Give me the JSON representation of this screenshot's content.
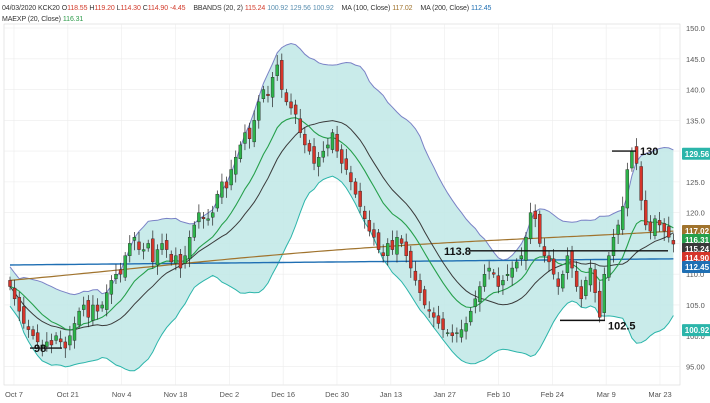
{
  "header": {
    "line1": {
      "date": "04/03/2020",
      "symbol": "KCK20",
      "open_label": "O",
      "open": "118.55",
      "high_label": "H",
      "high": "119.20",
      "low_label": "L",
      "low": "114.30",
      "close_label": "C",
      "close": "114.90",
      "change": "-4.45",
      "bbands_label": "BBANDS (20, 2)",
      "bb_mid": "115.24",
      "bb_low": "100.92",
      "bb_up": "129.56",
      "bb_low2": "100.92",
      "ma100_label": "MA (100, Close)",
      "ma100": "117.02",
      "ma200_label": "MA (200, Close)",
      "ma200": "112.45"
    },
    "line2": {
      "maexp_label": "MAEXP (20, Close)",
      "maexp": "116.31"
    }
  },
  "chart_data": {
    "type": "candlestick",
    "ylim": [
      92,
      150
    ],
    "yticks": [
      "95.00",
      "100.0",
      "105.0",
      "110.0",
      "115.0",
      "120.0",
      "125.0",
      "130.0",
      "135.0",
      "140.0",
      "145.0",
      "150.0"
    ],
    "xticks": [
      "Oct 7",
      "Oct 21",
      "Nov 4",
      "Nov 18",
      "Dec 2",
      "Dec 16",
      "Dec 30",
      "Jan 13",
      "Jan 27",
      "Feb 10",
      "Feb 24",
      "Mar 9",
      "Mar 23"
    ],
    "price_tags": [
      {
        "value": 129.56,
        "label": "129.56",
        "color": "#2bb5aa"
      },
      {
        "value": 117.02,
        "label": "117.02",
        "color": "#a0732d"
      },
      {
        "value": 116.31,
        "label": "116.31",
        "color": "#26a04c"
      },
      {
        "value": 115.24,
        "label": "115.24",
        "color": "#3a3a3a"
      },
      {
        "value": 114.9,
        "label": "114.90",
        "color": "#d5352a"
      },
      {
        "value": 112.45,
        "label": "112.45",
        "color": "#1f6fb3"
      },
      {
        "value": 100.92,
        "label": "100.92",
        "color": "#2bb5aa"
      }
    ],
    "annotations": [
      {
        "label": "98",
        "value": 98
      },
      {
        "label": "113.8",
        "value": 113.8
      },
      {
        "label": "102.5",
        "value": 102.5
      },
      {
        "label": "130",
        "value": 130
      }
    ],
    "closes": [
      108,
      106,
      104,
      102,
      101,
      100,
      99,
      98.5,
      99,
      98.5,
      100,
      99,
      98,
      100,
      102,
      104,
      105,
      103,
      105,
      104,
      105,
      107,
      109,
      110,
      110,
      113,
      115,
      116,
      114,
      114,
      115,
      112,
      114,
      115,
      114,
      112,
      113,
      111,
      113,
      116,
      118,
      120,
      119,
      119,
      120,
      123,
      125,
      124,
      127,
      129,
      131,
      133,
      132,
      135,
      138,
      140,
      139,
      142,
      144,
      140,
      138,
      137,
      136,
      133,
      131,
      130,
      128,
      129,
      130,
      131,
      133,
      130,
      128,
      127,
      125,
      123,
      121,
      119,
      117,
      116,
      114,
      113,
      115,
      114,
      116,
      115,
      113,
      111,
      109,
      107,
      105,
      104,
      103,
      102,
      101,
      100.5,
      100,
      100.5,
      101,
      102,
      104,
      106,
      108,
      110,
      111,
      110,
      108,
      109,
      110,
      111,
      112,
      113,
      116,
      120,
      119,
      115,
      113,
      112,
      110,
      108,
      110,
      113,
      111,
      108,
      106,
      109,
      111,
      107,
      103,
      110,
      113,
      116,
      118,
      121,
      127,
      130,
      128,
      122,
      118,
      117,
      119,
      118,
      117,
      116,
      114.9
    ]
  }
}
